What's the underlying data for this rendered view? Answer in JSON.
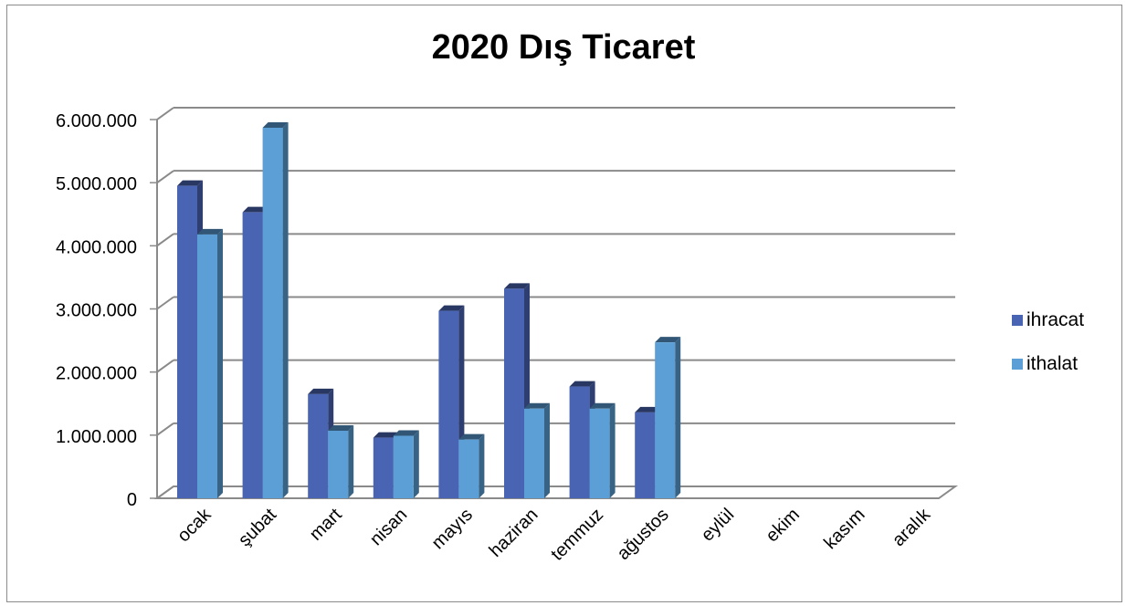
{
  "chart_data": {
    "type": "bar",
    "title": "2020 Dış Ticaret",
    "categories": [
      "ocak",
      "şubat",
      "mart",
      "nisan",
      "mayıs",
      "haziran",
      "temmuz",
      "ağustos",
      "eylül",
      "ekim",
      "kasım",
      "aralık"
    ],
    "series": [
      {
        "name": "ihracat",
        "color": "#4a64b4",
        "values": [
          4950000,
          4530000,
          1650000,
          960000,
          2970000,
          3320000,
          1770000,
          1360000,
          null,
          null,
          null,
          null
        ]
      },
      {
        "name": "ithalat",
        "color": "#5b9fd6",
        "values": [
          4180000,
          5870000,
          1070000,
          990000,
          930000,
          1420000,
          1420000,
          2470000,
          null,
          null,
          null,
          null
        ]
      }
    ],
    "ylim": [
      0,
      6000000
    ],
    "y_ticks": [
      0,
      1000000,
      2000000,
      3000000,
      4000000,
      5000000,
      6000000
    ],
    "y_tick_labels": [
      "0",
      "1.000.000",
      "2.000.000",
      "3.000.000",
      "4.000.000",
      "5.000.000",
      "6.000.000"
    ],
    "xlabel": "",
    "ylabel": "",
    "grid": true,
    "legend_position": "right",
    "style": "3d-clustered-column"
  }
}
